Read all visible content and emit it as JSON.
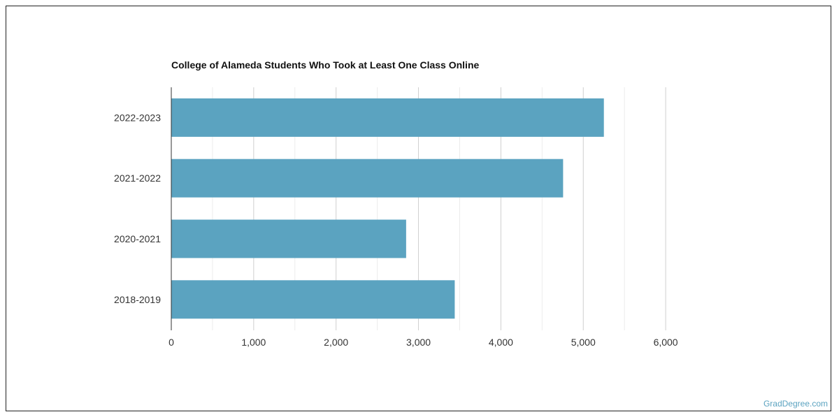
{
  "chart_data": {
    "type": "bar",
    "orientation": "horizontal",
    "title": "College of Alameda Students Who Took at Least One Class Online",
    "xlabel": "",
    "ylabel": "",
    "categories": [
      "2022-2023",
      "2021-2022",
      "2020-2021",
      "2018-2019"
    ],
    "values": [
      5250,
      4755,
      2850,
      3440
    ],
    "xlim": [
      0,
      6000
    ],
    "x_ticks": [
      0,
      1000,
      2000,
      3000,
      4000,
      5000,
      6000
    ],
    "x_tick_labels": [
      "0",
      "1,000",
      "2,000",
      "3,000",
      "4,000",
      "5,000",
      "6,000"
    ],
    "grid": "vertical",
    "bar_color": "#5ba3c0"
  },
  "footer": {
    "watermark": "GradDegree.com",
    "watermark_color": "#5ba3c0"
  }
}
